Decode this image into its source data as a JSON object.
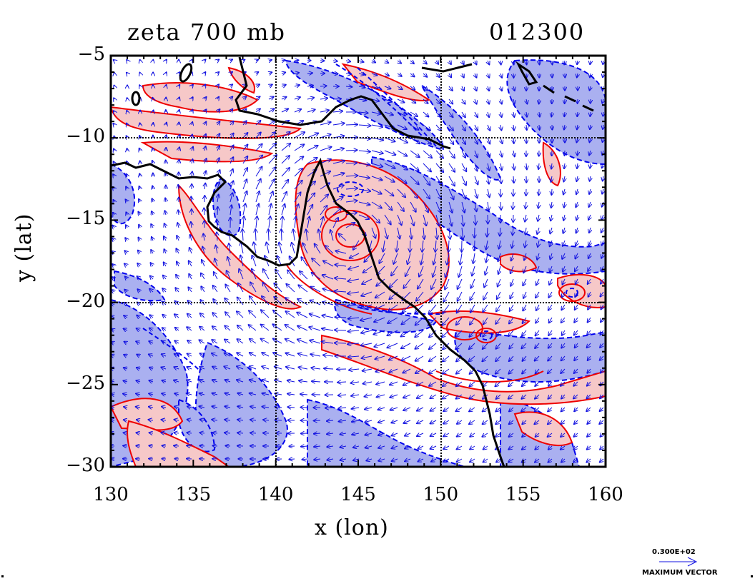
{
  "title": {
    "field": "zeta 700 mb",
    "timestamp": "012300"
  },
  "axes": {
    "x": {
      "label": "x (lon)",
      "ticks": [
        "130",
        "135",
        "140",
        "145",
        "150",
        "155",
        "160"
      ],
      "range": [
        130,
        160
      ]
    },
    "y": {
      "label": "y (lat)",
      "ticks": [
        "−5",
        "−10",
        "−15",
        "−20",
        "−25",
        "−30"
      ],
      "range": [
        -30,
        -5
      ]
    }
  },
  "reference_vector": {
    "value": "0.300E+02",
    "label": "MAXIMUM VECTOR"
  },
  "colors": {
    "positive_contour": "#ee0000",
    "positive_fill": "#f6c8c8",
    "negative_contour": "#0000ee",
    "negative_fill": "#aab0f0",
    "vector": "#1010e0",
    "coastline": "#000000"
  },
  "grid_lines": {
    "lon": [
      140,
      150
    ],
    "lat": [
      -10,
      -20
    ]
  },
  "map": {
    "region": "Northeastern Australia / Coral Sea",
    "coastline_shown": true,
    "vectors_shown": true
  }
}
